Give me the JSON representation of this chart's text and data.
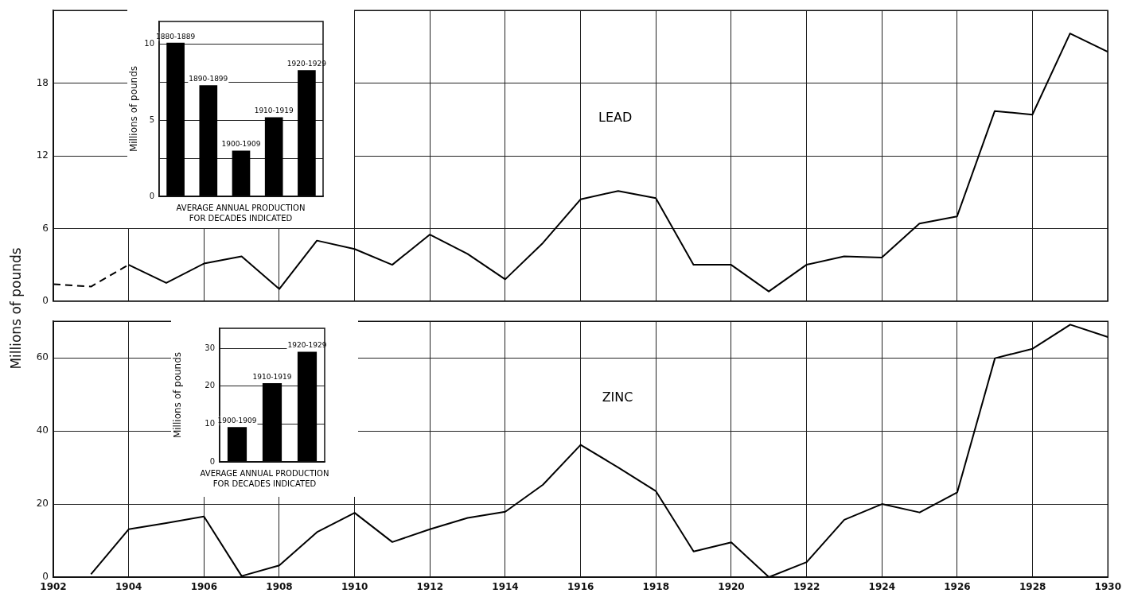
{
  "chart_data": [
    {
      "type": "line",
      "annotations": [
        "LEAD"
      ],
      "ylabel": "Millions of pounds",
      "xlim": [
        1902,
        1930
      ],
      "xticks": [
        1902,
        1904,
        1906,
        1908,
        1910,
        1912,
        1914,
        1916,
        1918,
        1920,
        1922,
        1924,
        1926,
        1928,
        1930
      ],
      "ylim": [
        0,
        24
      ],
      "yticks": [
        0,
        6,
        12,
        18
      ],
      "grid": true,
      "tick_labels": "y",
      "series": [
        {
          "color": "#000000",
          "line_style": "dashed",
          "x": [
            1902,
            1903,
            1904
          ],
          "values": [
            1.4,
            1.2,
            3.0
          ]
        },
        {
          "color": "#000000",
          "x": [
            1904,
            1905,
            1906,
            1907,
            1908,
            1909,
            1910,
            1911,
            1912,
            1913,
            1914,
            1915,
            1916,
            1917,
            1918,
            1919,
            1920,
            1921,
            1922,
            1923,
            1924,
            1925,
            1926,
            1927,
            1928,
            1929,
            1930
          ],
          "values": [
            3.0,
            1.5,
            3.1,
            3.7,
            1.0,
            5.0,
            4.3,
            3.0,
            5.5,
            3.9,
            1.8,
            4.8,
            8.4,
            9.1,
            8.5,
            3.0,
            3.0,
            0.8,
            3.0,
            3.7,
            3.6,
            6.4,
            7.0,
            15.7,
            15.4,
            22.1,
            20.6
          ]
        }
      ]
    },
    {
      "type": "bar",
      "categories": [
        "1880-1889",
        "1890-1899",
        "1900-1909",
        "1910-1919",
        "1920-1929"
      ],
      "values": [
        10.1,
        7.3,
        3.0,
        5.2,
        8.3
      ],
      "color": "#000000",
      "ylabel": "Millions of pounds",
      "xlabel": "AVERAGE ANNUAL PRODUCTION FOR DECADES INDICATED",
      "ylim": [
        0,
        11.5
      ],
      "yticks": [
        0,
        {
          "value": 2.5,
          "label": null
        },
        5,
        {
          "value": 7.5,
          "label": null
        },
        10
      ],
      "grid": "y"
    },
    {
      "type": "line",
      "annotations": [
        "ZINC"
      ],
      "xlim": [
        1902,
        1930
      ],
      "xticks": [
        1902,
        1904,
        1906,
        1908,
        1910,
        1912,
        1914,
        1916,
        1918,
        1920,
        1922,
        1924,
        1926,
        1928,
        1930
      ],
      "ylim": [
        0,
        70
      ],
      "yticks": [
        0,
        20,
        40,
        60
      ],
      "grid": true,
      "series": [
        {
          "color": "#000000",
          "x": [
            1903,
            1904,
            1905,
            1906,
            1907,
            1908,
            1909,
            1910,
            1911,
            1912,
            1913,
            1914,
            1915,
            1916,
            1917,
            1918,
            1919,
            1920,
            1921,
            1922,
            1923,
            1924,
            1925,
            1926,
            1927,
            1928,
            1929,
            1930
          ],
          "values": [
            0.8,
            13.1,
            14.8,
            16.6,
            0.3,
            3.2,
            12.3,
            17.6,
            9.6,
            13.1,
            16.2,
            17.9,
            25.3,
            36.2,
            30.0,
            23.5,
            7.0,
            9.5,
            0.0,
            4.1,
            15.7,
            20.0,
            17.7,
            23.2,
            59.9,
            62.5,
            69.1,
            65.7
          ]
        }
      ]
    },
    {
      "type": "bar",
      "categories": [
        "1900-1909",
        "1910-1919",
        "1920-1929"
      ],
      "values": [
        9.2,
        20.8,
        29.1
      ],
      "color": "#000000",
      "ylabel": "Millions of pounds",
      "xlabel": "AVERAGE ANNUAL PRODUCTION FOR DECADES INDICATED",
      "ylim": [
        0,
        35.3
      ],
      "yticks": [
        0,
        10,
        20,
        30
      ],
      "grid": "y"
    }
  ]
}
